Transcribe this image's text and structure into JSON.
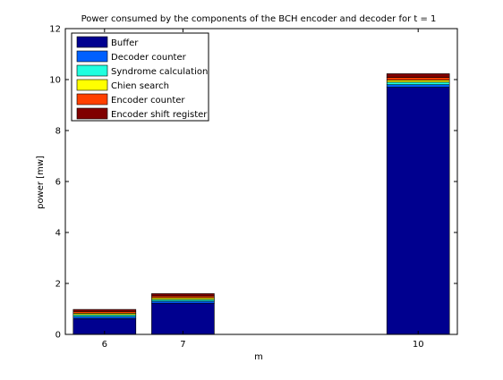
{
  "chart_data": {
    "type": "bar",
    "stacked": true,
    "title": "Power consumed by the components of the BCH encoder and decoder for t = 1",
    "xlabel": "m",
    "ylabel": "power [mw]",
    "categories": [
      "6",
      "7",
      "10"
    ],
    "x": [
      6,
      7,
      10
    ],
    "xlim": [
      5.5,
      10.5
    ],
    "ylim": [
      0,
      12
    ],
    "yticks": [
      0,
      2,
      4,
      6,
      8,
      10,
      12
    ],
    "grid": false,
    "legend_position": "top-left",
    "series": [
      {
        "name": "Buffer",
        "color": "#00008f",
        "values": [
          0.62,
          1.22,
          9.7
        ]
      },
      {
        "name": "Decoder counter",
        "color": "#0060ff",
        "values": [
          0.08,
          0.08,
          0.1
        ]
      },
      {
        "name": "Syndrome calculation",
        "color": "#20ffdf",
        "values": [
          0.07,
          0.07,
          0.1
        ]
      },
      {
        "name": "Chien search",
        "color": "#ffff00",
        "values": [
          0.06,
          0.07,
          0.08
        ]
      },
      {
        "name": "Encoder counter",
        "color": "#ff4000",
        "values": [
          0.07,
          0.07,
          0.1
        ]
      },
      {
        "name": "Encoder shift register",
        "color": "#800000",
        "values": [
          0.08,
          0.09,
          0.15
        ]
      }
    ]
  }
}
